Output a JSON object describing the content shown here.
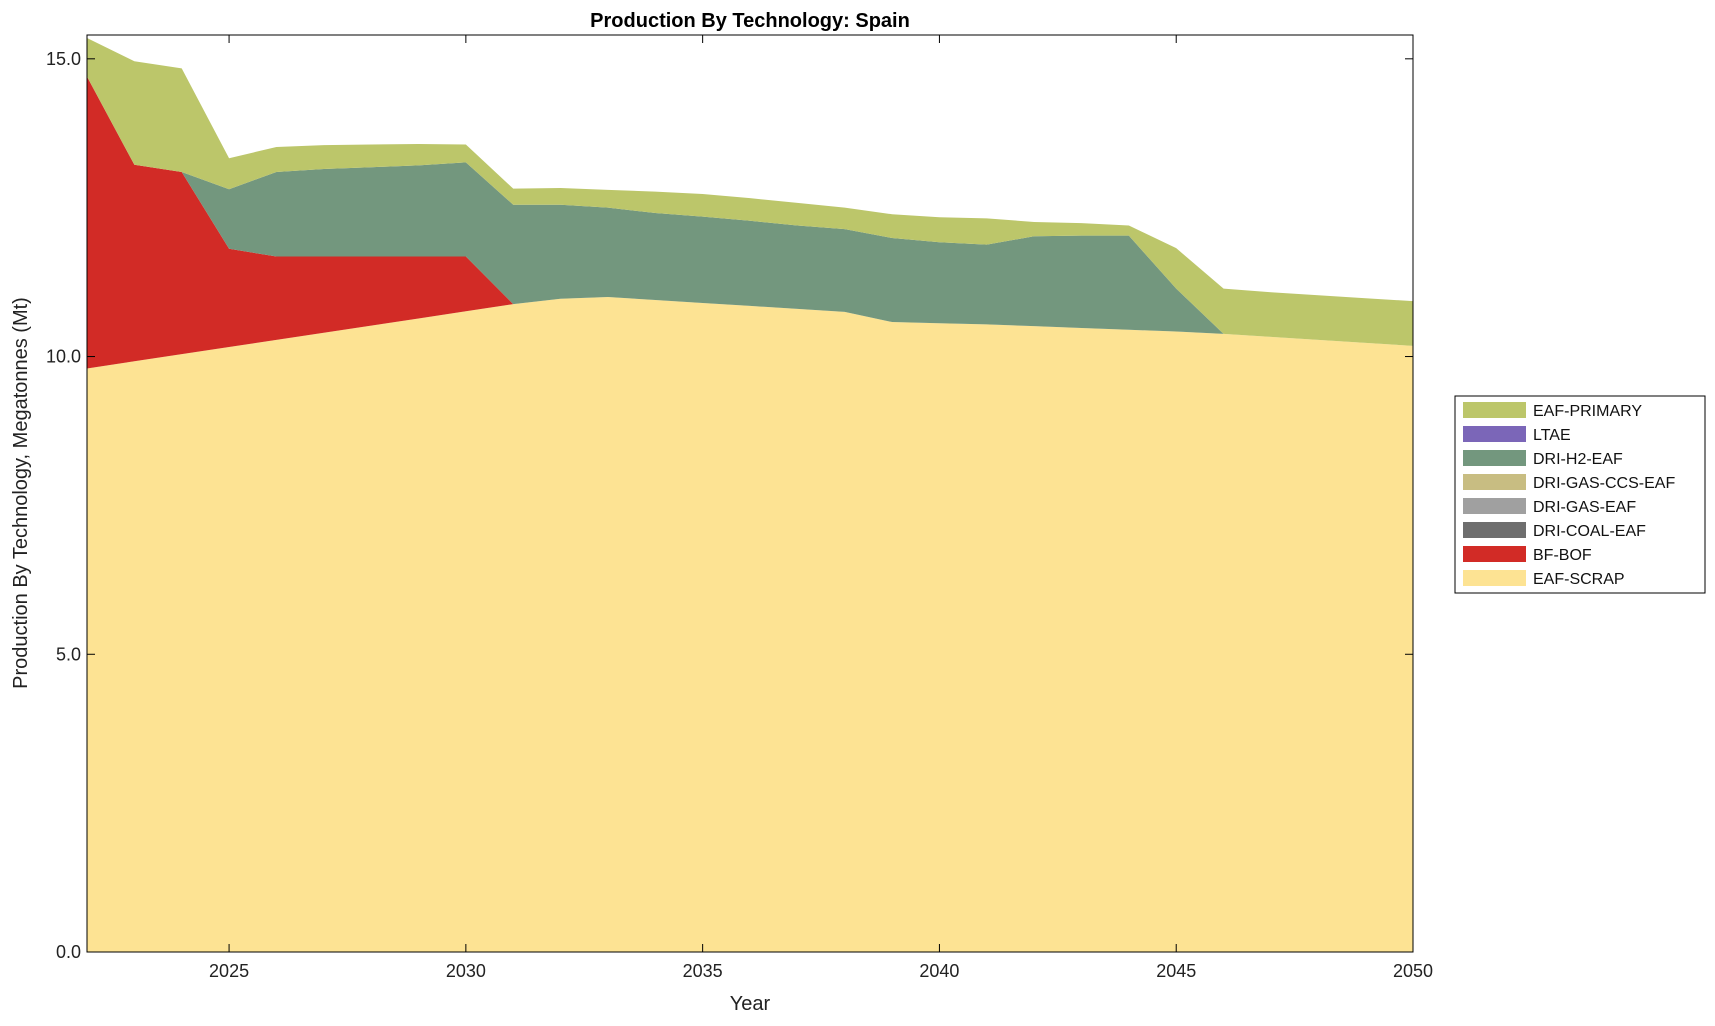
{
  "chart_data": {
    "type": "area",
    "stacked": true,
    "title": "Production By Technology: Spain",
    "xlabel": "Year",
    "ylabel": "Production By Technology, Megatonnes (Mt)",
    "xlim": [
      2022,
      2050
    ],
    "ylim": [
      0,
      15.4
    ],
    "xticks": [
      2025,
      2030,
      2035,
      2040,
      2045,
      2050
    ],
    "xtick_labels": [
      "2025",
      "2030",
      "2035",
      "2040",
      "2045",
      "2050"
    ],
    "yticks": [
      0,
      5,
      10,
      15
    ],
    "ytick_labels": [
      "0.0",
      "5.0",
      "10.0",
      "15.0"
    ],
    "grid": false,
    "legend_position": "right",
    "x": [
      2022,
      2023,
      2024,
      2025,
      2026,
      2027,
      2028,
      2029,
      2030,
      2031,
      2032,
      2033,
      2034,
      2035,
      2036,
      2037,
      2038,
      2039,
      2040,
      2041,
      2042,
      2043,
      2044,
      2045,
      2046,
      2047,
      2048,
      2049,
      2050
    ],
    "series": [
      {
        "name": "EAF-SCRAP",
        "color": "#fde393",
        "values": [
          9.8,
          9.92,
          10.04,
          10.16,
          10.28,
          10.4,
          10.52,
          10.64,
          10.76,
          10.88,
          10.97,
          11.0,
          10.95,
          10.9,
          10.85,
          10.8,
          10.75,
          10.58,
          10.56,
          10.54,
          10.51,
          10.48,
          10.45,
          10.42,
          10.38,
          10.33,
          10.28,
          10.23,
          10.18
        ]
      },
      {
        "name": "BF-BOF",
        "color": "#d22b26",
        "values": [
          4.9,
          3.3,
          3.06,
          1.65,
          1.4,
          1.28,
          1.16,
          1.04,
          0.92,
          0,
          0,
          0,
          0,
          0,
          0,
          0,
          0,
          0,
          0,
          0,
          0,
          0,
          0,
          0,
          0,
          0,
          0,
          0,
          0
        ]
      },
      {
        "name": "DRI-COAL-EAF",
        "color": "#6e6e6e",
        "values": [
          0,
          0,
          0,
          0,
          0,
          0,
          0,
          0,
          0,
          0,
          0,
          0,
          0,
          0,
          0,
          0,
          0,
          0,
          0,
          0,
          0,
          0,
          0,
          0,
          0,
          0,
          0,
          0,
          0
        ]
      },
      {
        "name": "DRI-GAS-EAF",
        "color": "#a0a0a0",
        "values": [
          0,
          0,
          0,
          0,
          0,
          0,
          0,
          0,
          0,
          0,
          0,
          0,
          0,
          0,
          0,
          0,
          0,
          0,
          0,
          0,
          0,
          0,
          0,
          0,
          0,
          0,
          0,
          0,
          0
        ]
      },
      {
        "name": "DRI-GAS-CCS-EAF",
        "color": "#c8bd82",
        "values": [
          0,
          0,
          0,
          0,
          0,
          0,
          0,
          0,
          0,
          0,
          0,
          0,
          0,
          0,
          0,
          0,
          0,
          0,
          0,
          0,
          0,
          0,
          0,
          0,
          0,
          0,
          0,
          0,
          0
        ]
      },
      {
        "name": "DRI-H2-EAF",
        "color": "#73977e",
        "values": [
          0,
          0,
          0,
          1.0,
          1.42,
          1.47,
          1.5,
          1.53,
          1.58,
          1.67,
          1.58,
          1.5,
          1.46,
          1.45,
          1.43,
          1.4,
          1.39,
          1.41,
          1.36,
          1.34,
          1.51,
          1.55,
          1.58,
          0.72,
          0,
          0,
          0,
          0,
          0
        ]
      },
      {
        "name": "LTAE",
        "color": "#7b66b8",
        "values": [
          0,
          0,
          0,
          0,
          0,
          0,
          0,
          0,
          0,
          0,
          0,
          0,
          0,
          0,
          0,
          0,
          0,
          0,
          0,
          0,
          0,
          0,
          0,
          0,
          0,
          0,
          0,
          0,
          0
        ]
      },
      {
        "name": "EAF-PRIMARY",
        "color": "#bcc66a",
        "values": [
          0.65,
          1.74,
          1.74,
          0.52,
          0.42,
          0.4,
          0.38,
          0.36,
          0.3,
          0.27,
          0.28,
          0.3,
          0.36,
          0.38,
          0.38,
          0.38,
          0.36,
          0.4,
          0.42,
          0.44,
          0.24,
          0.21,
          0.17,
          0.68,
          0.76,
          0.75,
          0.75,
          0.75,
          0.75
        ]
      }
    ]
  }
}
